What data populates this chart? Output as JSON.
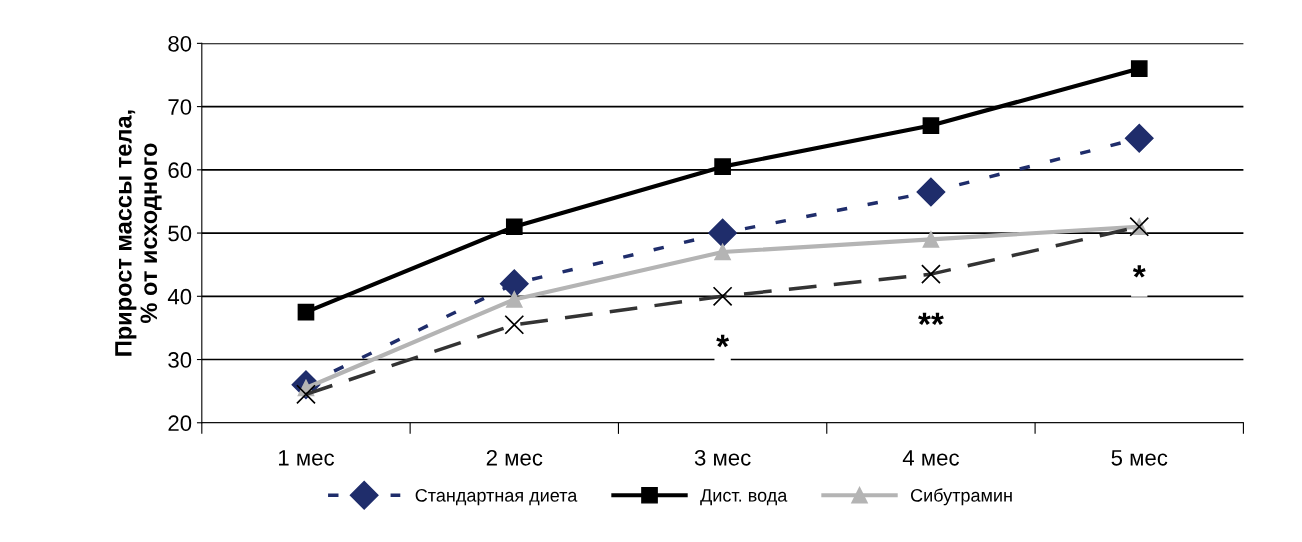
{
  "chart_data": {
    "type": "line",
    "ylabel": "Прирост массы тела,\n% от исходного",
    "categories": [
      "1 мес",
      "2 мес",
      "3 мес",
      "4 мес",
      "5 мес"
    ],
    "series": [
      {
        "name": "Стандартная диета",
        "color": "#1f2d6b",
        "marker": "diamond",
        "line_style": "dotted",
        "values": [
          26,
          42,
          50,
          56.5,
          65
        ]
      },
      {
        "name": "Дист. вода",
        "color": "#000000",
        "marker": "square",
        "line_style": "solid",
        "values": [
          37.5,
          51,
          60.5,
          67,
          76
        ]
      },
      {
        "name": "Сибутрамин",
        "color": "#b4b4b4",
        "marker": "triangle",
        "line_style": "solid",
        "values": [
          25.5,
          39.5,
          47,
          49,
          51
        ]
      },
      {
        "color": "#333333",
        "marker": "cross",
        "line_style": "dashed",
        "values": [
          24.5,
          35.5,
          40,
          43.5,
          51
        ]
      }
    ],
    "ylim": [
      20,
      80
    ],
    "yticks": [
      20,
      30,
      40,
      50,
      60,
      70,
      80
    ],
    "grid": "y",
    "legend": "bottom",
    "annotations": [
      {
        "text": "*",
        "x": "3 мес",
        "y": 40
      },
      {
        "text": "**",
        "x": "4 мес",
        "y": 43.5
      },
      {
        "text": "*",
        "x": "5 мес",
        "y": 51
      }
    ]
  }
}
